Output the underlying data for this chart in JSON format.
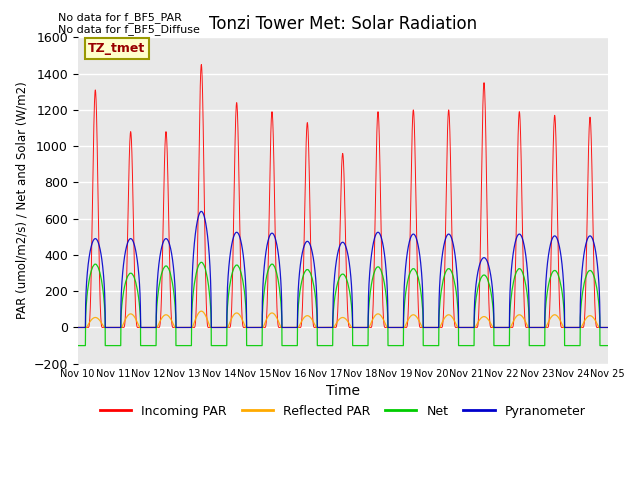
{
  "title": "Tonzi Tower Met: Solar Radiation",
  "ylabel": "PAR (umol/m2/s) / Net and Solar (W/m2)",
  "xlabel": "Time",
  "ylim": [
    -200,
    1600
  ],
  "xlim": [
    0,
    15
  ],
  "xtick_labels": [
    "Nov 10",
    "Nov 11",
    "Nov 12",
    "Nov 13",
    "Nov 14",
    "Nov 15",
    "Nov 16",
    "Nov 17",
    "Nov 18",
    "Nov 19",
    "Nov 20",
    "Nov 21",
    "Nov 22",
    "Nov 23",
    "Nov 24",
    "Nov 25"
  ],
  "annotation1": "No data for f_BF5_PAR",
  "annotation2": "No data for f_BF5_Diffuse",
  "legend_label": "TZ_tmet",
  "legend_bg": "#ffffcc",
  "legend_edge": "#999900",
  "colors": {
    "incoming": "#ff0000",
    "reflected": "#ffaa00",
    "net": "#00cc00",
    "pyranometer": "#0000cc"
  },
  "line_labels": [
    "Incoming PAR",
    "Reflected PAR",
    "Net",
    "Pyranometer"
  ],
  "plot_bg": "#e8e8e8",
  "fig_bg": "#ffffff",
  "day_peaks_incoming": [
    1310,
    1080,
    1080,
    1450,
    1240,
    1190,
    1130,
    960,
    1190,
    1200,
    1200,
    1350,
    1190,
    1170,
    1160
  ],
  "day_peaks_reflected": [
    55,
    75,
    70,
    90,
    80,
    80,
    65,
    55,
    75,
    70,
    70,
    60,
    70,
    70,
    65
  ],
  "day_peaks_net": [
    350,
    300,
    340,
    360,
    345,
    350,
    320,
    295,
    335,
    325,
    325,
    290,
    325,
    315,
    315
  ],
  "day_peaks_pyranometer": [
    490,
    490,
    490,
    640,
    525,
    520,
    475,
    470,
    525,
    515,
    515,
    385,
    515,
    505,
    505
  ],
  "net_night": -100,
  "n_days": 15
}
